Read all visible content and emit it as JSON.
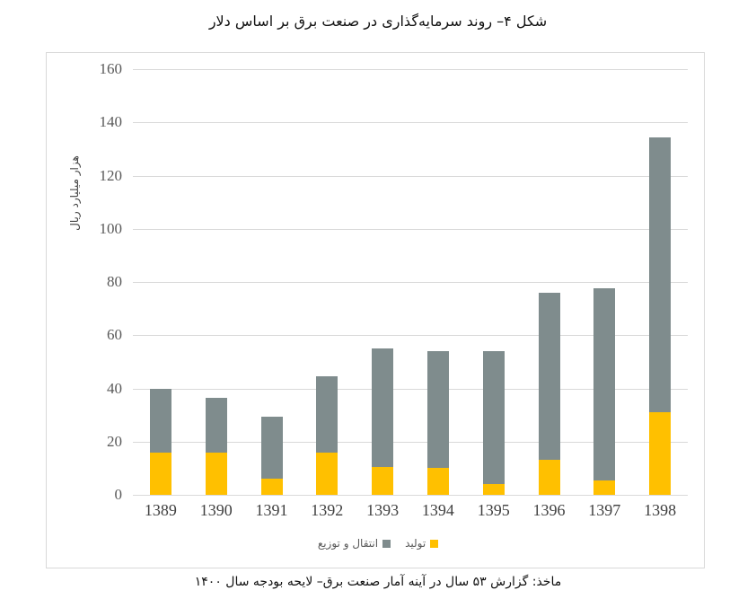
{
  "title": "شکل ۴– روند سرمایه‌گذاری در صنعت برق بر اساس دلار",
  "source": "ماخذ: گزارش ۵۳ سال در آینه آمار صنعت برق– لایحه بودجه سال ۱۴۰۰",
  "legend": {
    "production_label": "تولید",
    "distribution_label": "انتقال و توزیع"
  },
  "colors": {
    "production": "#ffc000",
    "distribution": "#7f8c8d",
    "grid": "#d9d9d9"
  },
  "chart_data": {
    "type": "bar",
    "stacked": true,
    "title": "شکل ۴– روند سرمایه‌گذاری در صنعت برق بر اساس دلار",
    "xlabel": "",
    "ylabel": "هزار میلیارد ریال",
    "ylim": [
      0,
      160
    ],
    "yticks": [
      0,
      20,
      40,
      60,
      80,
      100,
      120,
      140,
      160
    ],
    "grid": true,
    "legend_position": "bottom",
    "categories": [
      "1389",
      "1390",
      "1391",
      "1392",
      "1393",
      "1394",
      "1395",
      "1396",
      "1397",
      "1398"
    ],
    "series": [
      {
        "name": "تولید",
        "color": "#ffc000",
        "values": [
          16,
          16,
          6,
          16,
          10.5,
          10,
          4,
          13,
          5.5,
          31
        ]
      },
      {
        "name": "انتقال و توزیع",
        "color": "#7f8c8d",
        "values": [
          24,
          20.5,
          23.5,
          28.5,
          44.5,
          44,
          50,
          63,
          72,
          103.5
        ]
      }
    ],
    "totals": [
      40,
      36.5,
      29.5,
      44.5,
      55,
      54,
      54,
      76,
      77.5,
      134.5
    ]
  }
}
